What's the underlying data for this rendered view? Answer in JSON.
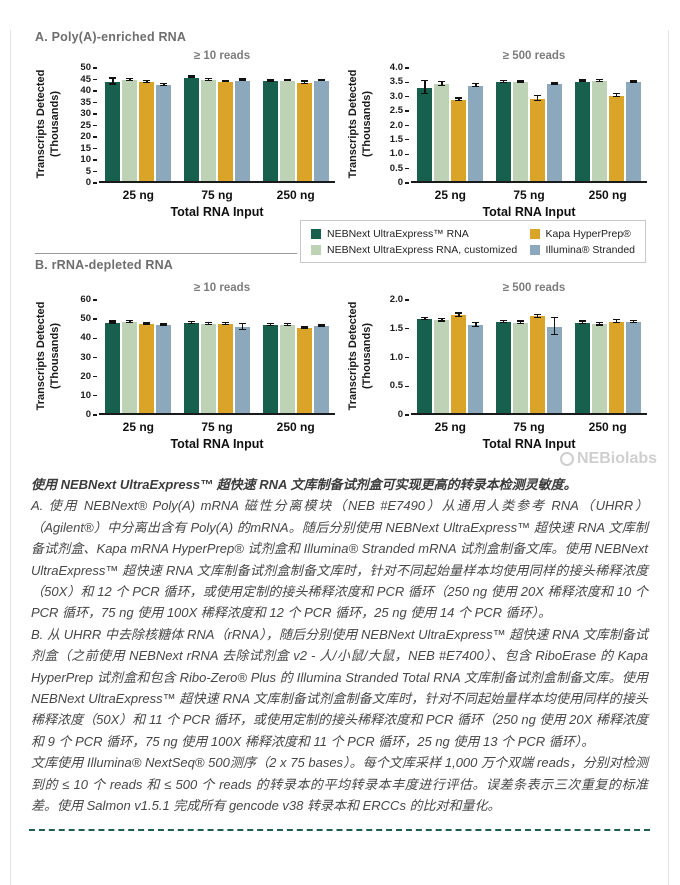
{
  "page": {
    "section_a_title": "A. Poly(A)-enriched RNA",
    "section_b_title": "B. rRNA-depleted RNA",
    "watermark": "NEBiolabs"
  },
  "legend": {
    "items": [
      {
        "label": "NEBNext UltraExpress™ RNA",
        "color": "#16604d"
      },
      {
        "label": "NEBNext UltraExpress RNA, customized",
        "color": "#bed3b6"
      },
      {
        "label": "Kapa HyperPrep®",
        "color": "#d9a427"
      },
      {
        "label": "Illumina® Stranded",
        "color": "#8ca8bd"
      }
    ]
  },
  "chart_data": [
    {
      "type": "bar",
      "title": "≥ 10 reads",
      "ylabel": "Transcripts Detected (Thousands)",
      "ylabel_lines": [
        "Transcripts Detected",
        "(Thousands)"
      ],
      "xlabel": "Total RNA Input",
      "ylim": [
        0,
        50
      ],
      "yticks": [
        "0",
        "5",
        "10",
        "15",
        "20",
        "25",
        "30",
        "35",
        "40",
        "45",
        "50"
      ],
      "categories": [
        "25 ng",
        "75 ng",
        "250 ng"
      ],
      "series": [
        {
          "name": "NEBNext UltraExpress™ RNA",
          "values": [
            43.2,
            45.0,
            43.5
          ],
          "errors": [
            1.3,
            0.4,
            0.3
          ]
        },
        {
          "name": "NEBNext UltraExpress RNA, customized",
          "values": [
            43.9,
            43.9,
            43.6
          ],
          "errors": [
            0.3,
            0.3,
            0.3
          ]
        },
        {
          "name": "Kapa HyperPrep®",
          "values": [
            42.9,
            43.2,
            42.7
          ],
          "errors": [
            0.4,
            0.3,
            0.5
          ]
        },
        {
          "name": "Illumina® Stranded",
          "values": [
            41.6,
            43.7,
            43.7
          ],
          "errors": [
            0.5,
            0.4,
            0.3
          ]
        }
      ]
    },
    {
      "type": "bar",
      "title": "≥ 500 reads",
      "ylabel": "Transcripts Detected (Thousands)",
      "ylabel_lines": [
        "Transcripts Detected",
        "(Thousands)"
      ],
      "xlabel": "Total RNA Input",
      "ylim": [
        0,
        4.0
      ],
      "yticks": [
        "0",
        "0.5",
        "1.0",
        "1.5",
        "2.0",
        "2.5",
        "3.0",
        "3.5",
        "4.0"
      ],
      "categories": [
        "25 ng",
        "75 ng",
        "250 ng"
      ],
      "series": [
        {
          "name": "NEBNext UltraExpress™ RNA",
          "values": [
            3.25,
            3.44,
            3.46
          ],
          "errors": [
            0.22,
            0.03,
            0.03
          ]
        },
        {
          "name": "NEBNext UltraExpress RNA, customized",
          "values": [
            3.37,
            3.43,
            3.48
          ],
          "errors": [
            0.06,
            0.03,
            0.04
          ]
        },
        {
          "name": "Kapa HyperPrep®",
          "values": [
            2.82,
            2.87,
            2.97
          ],
          "errors": [
            0.05,
            0.08,
            0.06
          ]
        },
        {
          "name": "Illumina® Stranded",
          "values": [
            3.31,
            3.36,
            3.43
          ],
          "errors": [
            0.05,
            0.03,
            0.03
          ]
        }
      ]
    },
    {
      "type": "bar",
      "title": "≥ 10 reads",
      "ylabel": "Transcripts Detected (Thousands)",
      "ylabel_lines": [
        "Transcripts Detected",
        "(Thousands)"
      ],
      "xlabel": "Total RNA Input",
      "ylim": [
        0,
        60
      ],
      "yticks": [
        "0",
        "10",
        "20",
        "30",
        "40",
        "50",
        "60"
      ],
      "categories": [
        "25 ng",
        "75 ng",
        "250 ng"
      ],
      "series": [
        {
          "name": "NEBNext UltraExpress™ RNA",
          "values": [
            47.2,
            46.8,
            45.9
          ],
          "errors": [
            0.5,
            0.5,
            0.4
          ]
        },
        {
          "name": "NEBNext UltraExpress RNA, customized",
          "values": [
            47.4,
            46.4,
            45.8
          ],
          "errors": [
            0.6,
            0.4,
            0.4
          ]
        },
        {
          "name": "Kapa HyperPrep®",
          "values": [
            46.6,
            46.4,
            44.4
          ],
          "errors": [
            0.5,
            0.4,
            0.4
          ]
        },
        {
          "name": "Illumina® Stranded",
          "values": [
            46.0,
            44.9,
            45.2
          ],
          "errors": [
            0.4,
            1.7,
            0.4
          ]
        }
      ]
    },
    {
      "type": "bar",
      "title": "≥ 500 reads",
      "ylabel": "Transcripts Detected (Thousands)",
      "ylabel_lines": [
        "Transcripts Detected",
        "(Thousands)"
      ],
      "xlabel": "Total RNA Input",
      "ylim": [
        0,
        2.0
      ],
      "yticks": [
        "0",
        "0.5",
        "1.0",
        "1.5",
        "2.0"
      ],
      "categories": [
        "25 ng",
        "75 ng",
        "250 ng"
      ],
      "series": [
        {
          "name": "NEBNext UltraExpress™ RNA",
          "values": [
            1.63,
            1.58,
            1.57
          ],
          "errors": [
            0.02,
            0.02,
            0.02
          ]
        },
        {
          "name": "NEBNext UltraExpress RNA, customized",
          "values": [
            1.61,
            1.57,
            1.54
          ],
          "errors": [
            0.02,
            0.02,
            0.02
          ]
        },
        {
          "name": "Kapa HyperPrep®",
          "values": [
            1.7,
            1.68,
            1.59
          ],
          "errors": [
            0.03,
            0.03,
            0.02
          ]
        },
        {
          "name": "Illumina® Stranded",
          "values": [
            1.53,
            1.5,
            1.58
          ],
          "errors": [
            0.04,
            0.15,
            0.02
          ]
        }
      ]
    }
  ],
  "caption": {
    "lead": "使用 NEBNext UltraExpress™ 超快速 RNA 文库制备试剂盒可实现更高的转录本检测灵敏度。",
    "para_a": "A. 使用 NEBNext® Poly(A) mRNA 磁性分离模块（NEB #E7490）从通用人类参考 RNA（UHRR）（Agilent®）中分离出含有 Poly(A) 的mRNA。随后分别使用 NEBNext UltraExpress™ 超快速 RNA 文库制备试剂盒、Kapa mRNA HyperPrep® 试剂盒和 Illumina® Stranded mRNA 试剂盒制备文库。使用 NEBNext UltraExpress™ 超快速 RNA 文库制备试剂盒制备文库时，针对不同起始量样本均使用同样的接头稀释浓度（50X）和 12 个 PCR 循环，或使用定制的接头稀释浓度和 PCR 循环（250 ng 使用 20X 稀释浓度和 10 个 PCR 循环，75 ng 使用 100X 稀释浓度和 12 个 PCR 循环，25 ng 使用 14 个 PCR 循环）。",
    "para_b": "B. 从 UHRR 中去除核糖体 RNA（rRNA），随后分别使用 NEBNext UltraExpress™ 超快速 RNA 文库制备试剂盒（之前使用 NEBNext rRNA 去除试剂盒 v2 - 人/小鼠/大鼠，NEB #E7400）、包含 RiboErase 的 Kapa HyperPrep 试剂盒和包含 Ribo-Zero® Plus 的 Illumina Stranded Total RNA 文库制备试剂盒制备文库。使用 NEBNext UltraExpress™ 超快速 RNA 文库制备试剂盒制备文库时，针对不同起始量样本均使用同样的接头稀释浓度（50X）和 11 个 PCR 循环，或使用定制的接头稀释浓度和 PCR 循环（250 ng 使用 20X 稀释浓度和 9 个 PCR 循环，75 ng 使用 100X 稀释浓度和 11 个 PCR 循环，25 ng 使用 13 个 PCR 循环）。",
    "para_c": "文库使用 Illumina® NextSeq® 500测序（2 x 75 bases）。每个文库采样 1,000 万个双端 reads，分别对检测到的 ≤ 10 个 reads 和 ≤ 500 个 reads 的转录本的平均转录本丰度进行评估。误差条表示三次重复的标准差。使用 Salmon v1.5.1 完成所有 gencode v38 转录本和 ERCCs 的比对和量化。"
  }
}
